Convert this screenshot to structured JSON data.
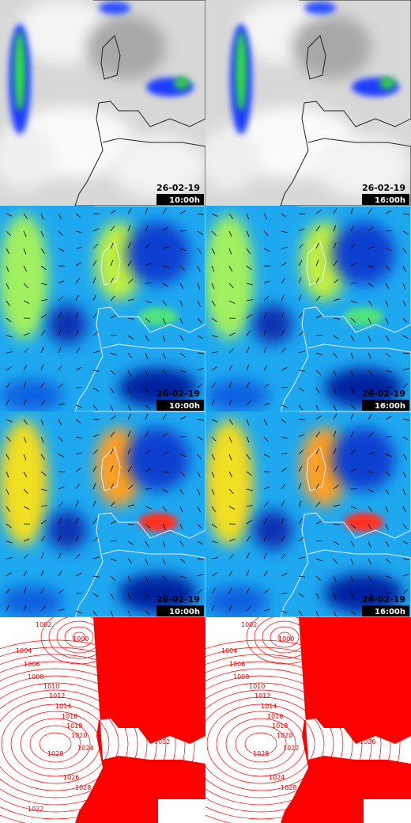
{
  "panels": [
    {
      "date": "26-02-19",
      "time": "10:00h"
    },
    {
      "date": "26-02-19",
      "time": "16:00h"
    },
    {
      "date": "26-02-19",
      "time": "10:00h"
    },
    {
      "date": "26-02-19",
      "time": "16:00h"
    },
    {
      "date": "26-02-19",
      "time": "10:00h"
    },
    {
      "date": "26-02-19",
      "time": "16:00h"
    }
  ],
  "pressure_maps": [
    {
      "isobar_labels": [
        "1002",
        "1000",
        "1004",
        "1006",
        "1008",
        "1010",
        "1012",
        "1014",
        "1016",
        "1018",
        "1020",
        "1024",
        "1028",
        "1012",
        "1026",
        "1028",
        "1022"
      ]
    },
    {
      "isobar_labels": [
        "1002",
        "1000",
        "1004",
        "1006",
        "1008",
        "1010",
        "1012",
        "1014",
        "1016",
        "1018",
        "1020",
        "1022",
        "1028",
        "1026",
        "1024",
        "1028"
      ]
    }
  ]
}
